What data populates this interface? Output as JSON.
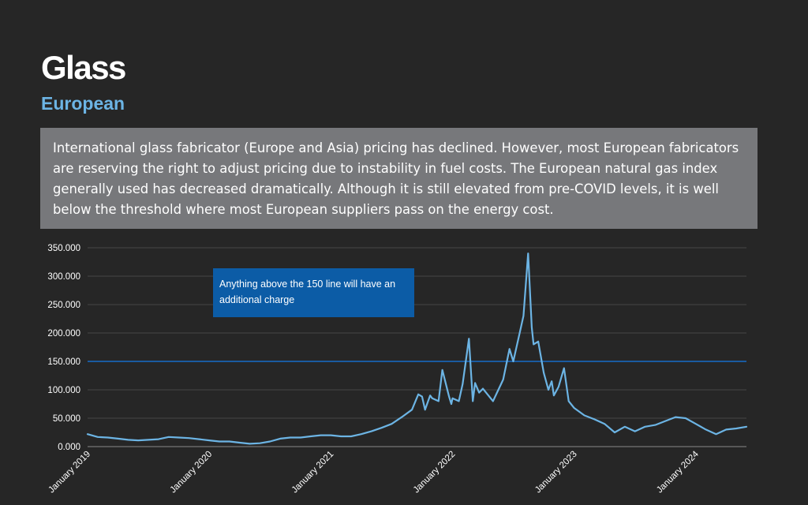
{
  "header": {
    "title": "Glass",
    "subtitle": "European"
  },
  "description": "International glass fabricator (Europe and Asia) pricing has declined. However, most European fabricators are reserving the right to adjust pricing due to instability in fuel costs. The European natural gas index generally used has decreased dramatically. Although it is still elevated from pre-COVID levels, it is well below the threshold where most European suppliers pass on the energy cost.",
  "chart_data": {
    "type": "line",
    "title": "",
    "xlabel": "",
    "ylabel": "",
    "ylim": [
      0,
      350
    ],
    "xlim": [
      "2019-01",
      "2024-06"
    ],
    "yticks": [
      0,
      50,
      100,
      150,
      200,
      250,
      300,
      350
    ],
    "ytick_labels": [
      "0.000",
      "50.000",
      "100.000",
      "150.000",
      "200.000",
      "250.000",
      "300.000",
      "350.000"
    ],
    "xticks": [
      "2019-01",
      "2020-01",
      "2021-01",
      "2022-01",
      "2023-01",
      "2024-01"
    ],
    "xtick_labels": [
      "January 2019",
      "January 2020",
      "January 2021",
      "January 2022",
      "January 2023",
      "January 2024"
    ],
    "grid": true,
    "line_color": "#6cb4e4",
    "threshold": {
      "value": 150,
      "color": "#1a5aa0"
    },
    "annotation": {
      "text": "Anything above the 150 line will have an additional charge",
      "color": "#0c5ca6"
    },
    "series": [
      {
        "x": [
          "2019-01",
          "2019-02",
          "2019-03",
          "2019-04",
          "2019-05",
          "2019-06",
          "2019-07",
          "2019-08",
          "2019-09",
          "2019-10",
          "2019-11",
          "2019-12",
          "2020-01",
          "2020-02",
          "2020-03",
          "2020-04",
          "2020-05",
          "2020-06",
          "2020-07",
          "2020-08",
          "2020-09",
          "2020-10",
          "2020-11",
          "2020-12",
          "2021-01",
          "2021-02",
          "2021-03",
          "2021-04",
          "2021-05",
          "2021-06",
          "2021-07",
          "2021-08",
          "2021-09",
          "2021-09-20",
          "2021-10",
          "2021-10-10",
          "2021-10-25",
          "2021-11",
          "2021-11-20",
          "2021-12",
          "2021-12-21",
          "2021-12-28",
          "2022-01",
          "2022-01-20",
          "2022-02",
          "2022-02-20",
          "2022-03",
          "2022-03-08",
          "2022-03-20",
          "2022-04",
          "2022-05",
          "2022-06",
          "2022-06-20",
          "2022-07",
          "2022-07-20",
          "2022-08",
          "2022-08-15",
          "2022-08-26",
          "2022-09",
          "2022-09-15",
          "2022-10",
          "2022-10-15",
          "2022-10-25",
          "2022-11",
          "2022-11-15",
          "2022-12",
          "2022-12-15",
          "2023-01",
          "2023-02",
          "2023-03",
          "2023-04",
          "2023-05",
          "2023-06",
          "2023-07",
          "2023-08",
          "2023-09",
          "2023-10",
          "2023-11",
          "2023-12",
          "2024-01",
          "2024-02",
          "2024-03",
          "2024-04",
          "2024-05",
          "2024-06"
        ],
        "values": [
          22,
          17,
          16,
          14,
          12,
          11,
          12,
          13,
          17,
          16,
          15,
          13,
          11,
          9,
          9,
          7,
          5,
          6,
          9,
          14,
          16,
          16,
          18,
          20,
          20,
          18,
          18,
          22,
          27,
          33,
          40,
          52,
          65,
          92,
          88,
          65,
          90,
          85,
          80,
          135,
          88,
          75,
          85,
          80,
          110,
          190,
          80,
          112,
          95,
          102,
          80,
          118,
          172,
          150,
          200,
          230,
          340,
          210,
          180,
          185,
          130,
          100,
          115,
          90,
          105,
          138,
          80,
          68,
          55,
          48,
          40,
          25,
          35,
          27,
          35,
          38,
          45,
          52,
          50,
          40,
          30,
          22,
          30,
          32,
          35
        ]
      }
    ]
  }
}
